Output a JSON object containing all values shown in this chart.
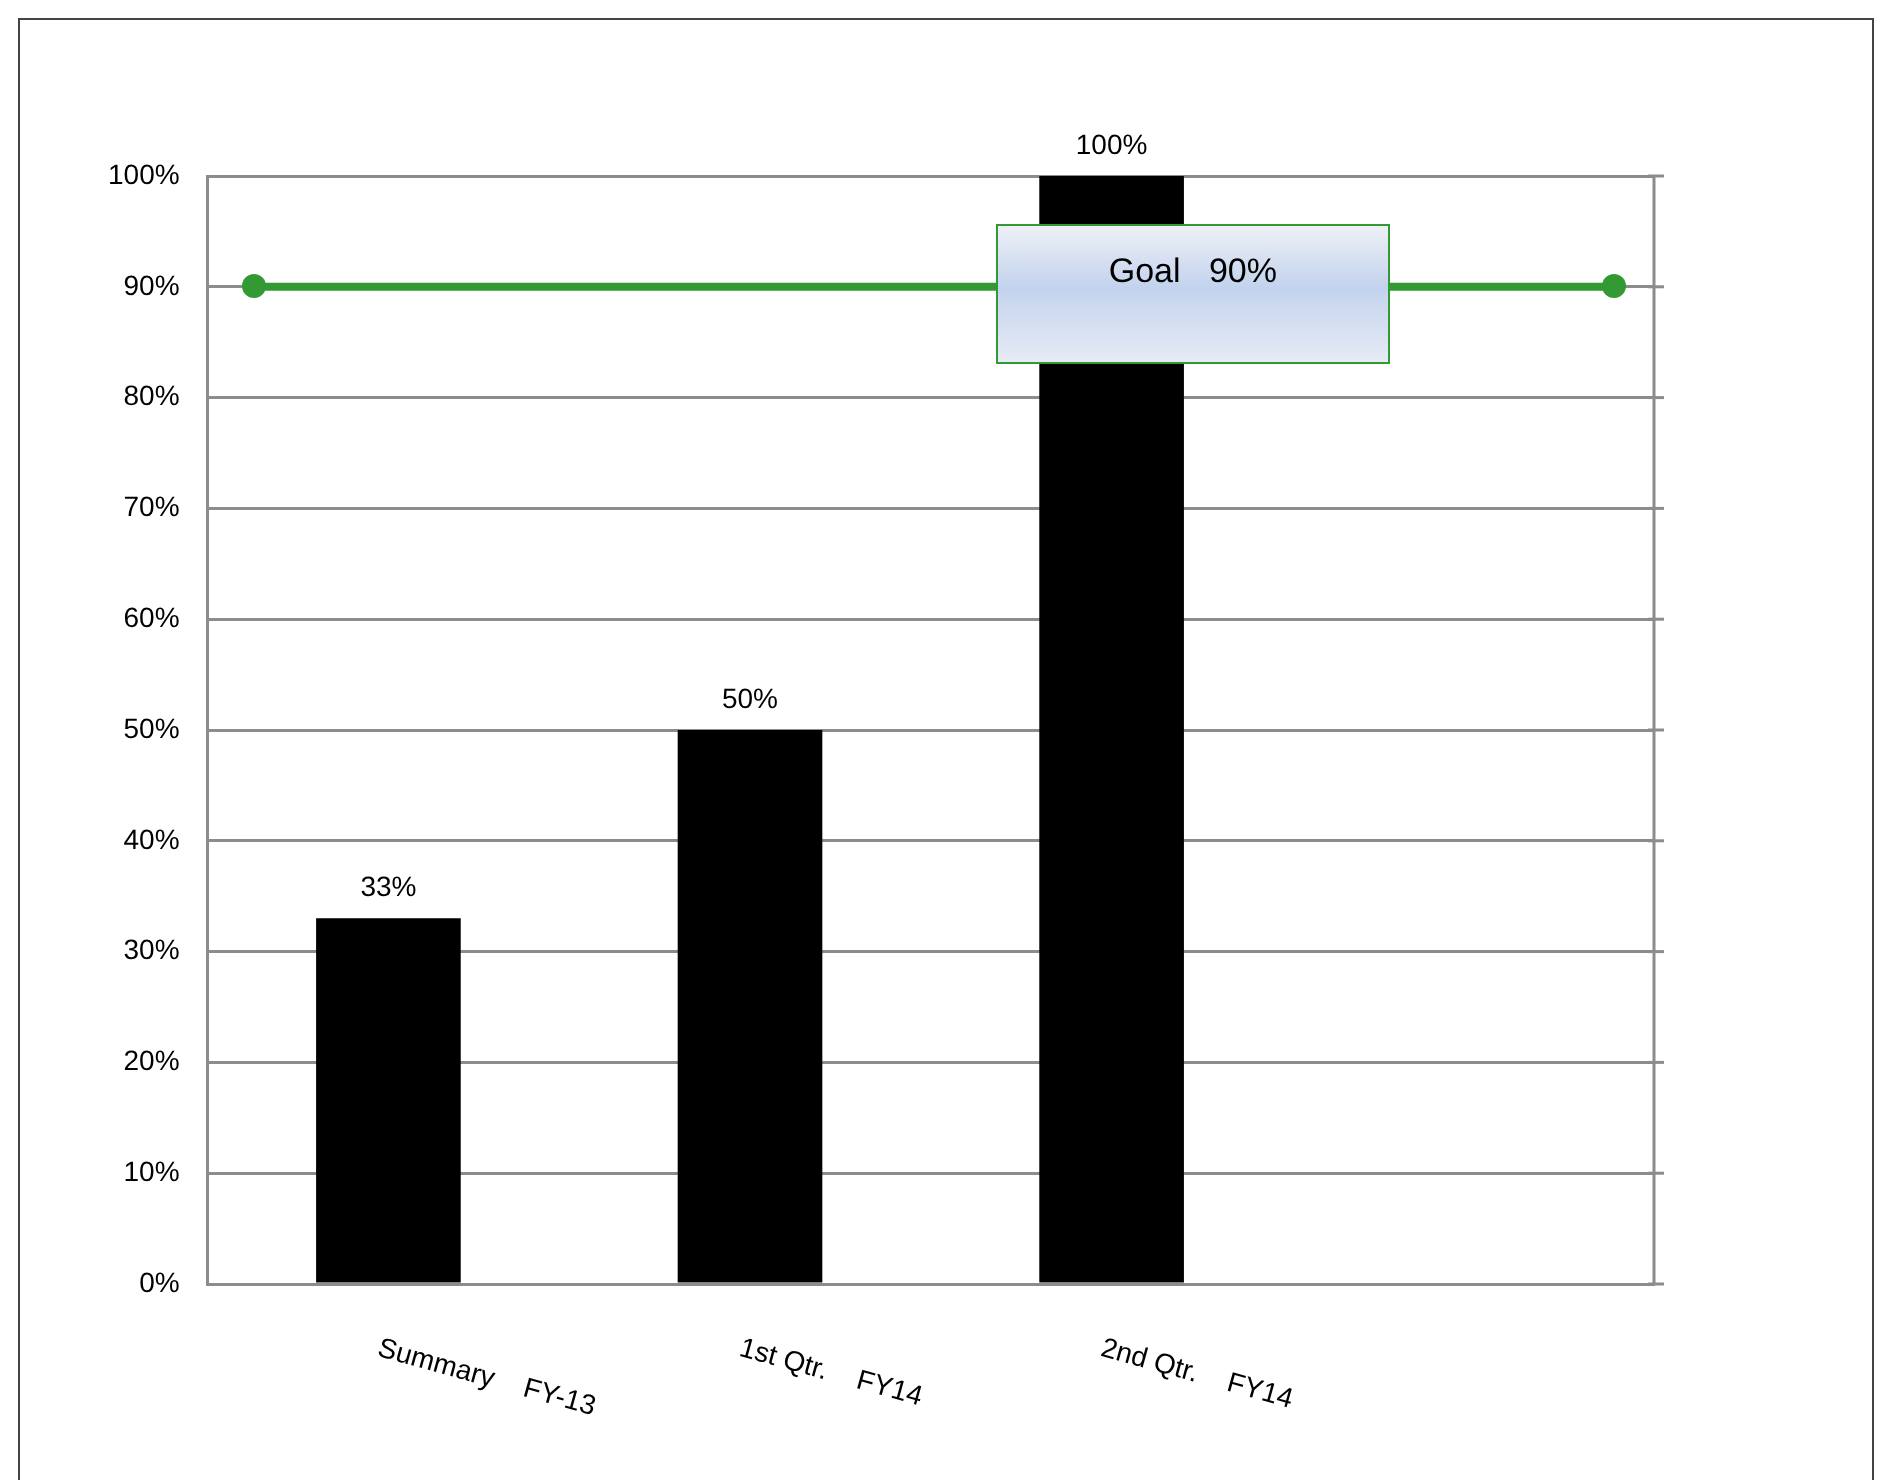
{
  "chart_data": {
    "type": "bar",
    "categories": [
      "Summary    FY-13",
      "1st Qtr.    FY14",
      "2nd Qtr.    FY14",
      null
    ],
    "values": [
      33,
      50,
      100,
      null
    ],
    "color": "#000000",
    "value_labels": [
      "33%",
      "50%",
      "100%",
      null
    ],
    "ylim": [
      0,
      100
    ],
    "yticks": [
      {
        "value": 0,
        "label": "0%"
      },
      {
        "value": 10,
        "label": "10%"
      },
      {
        "value": 20,
        "label": "20%"
      },
      {
        "value": 30,
        "label": "30%"
      },
      {
        "value": 40,
        "label": "40%"
      },
      {
        "value": 50,
        "label": "50%"
      },
      {
        "value": 60,
        "label": "60%"
      },
      {
        "value": 70,
        "label": "70%"
      },
      {
        "value": 80,
        "label": "80%"
      },
      {
        "value": 90,
        "label": "90%"
      },
      {
        "value": 100,
        "label": "100%"
      }
    ],
    "grid": "y",
    "ref_lines": [
      {
        "axis": "y",
        "value": 90,
        "label": "Goal   90%",
        "color": "#339933"
      }
    ]
  }
}
